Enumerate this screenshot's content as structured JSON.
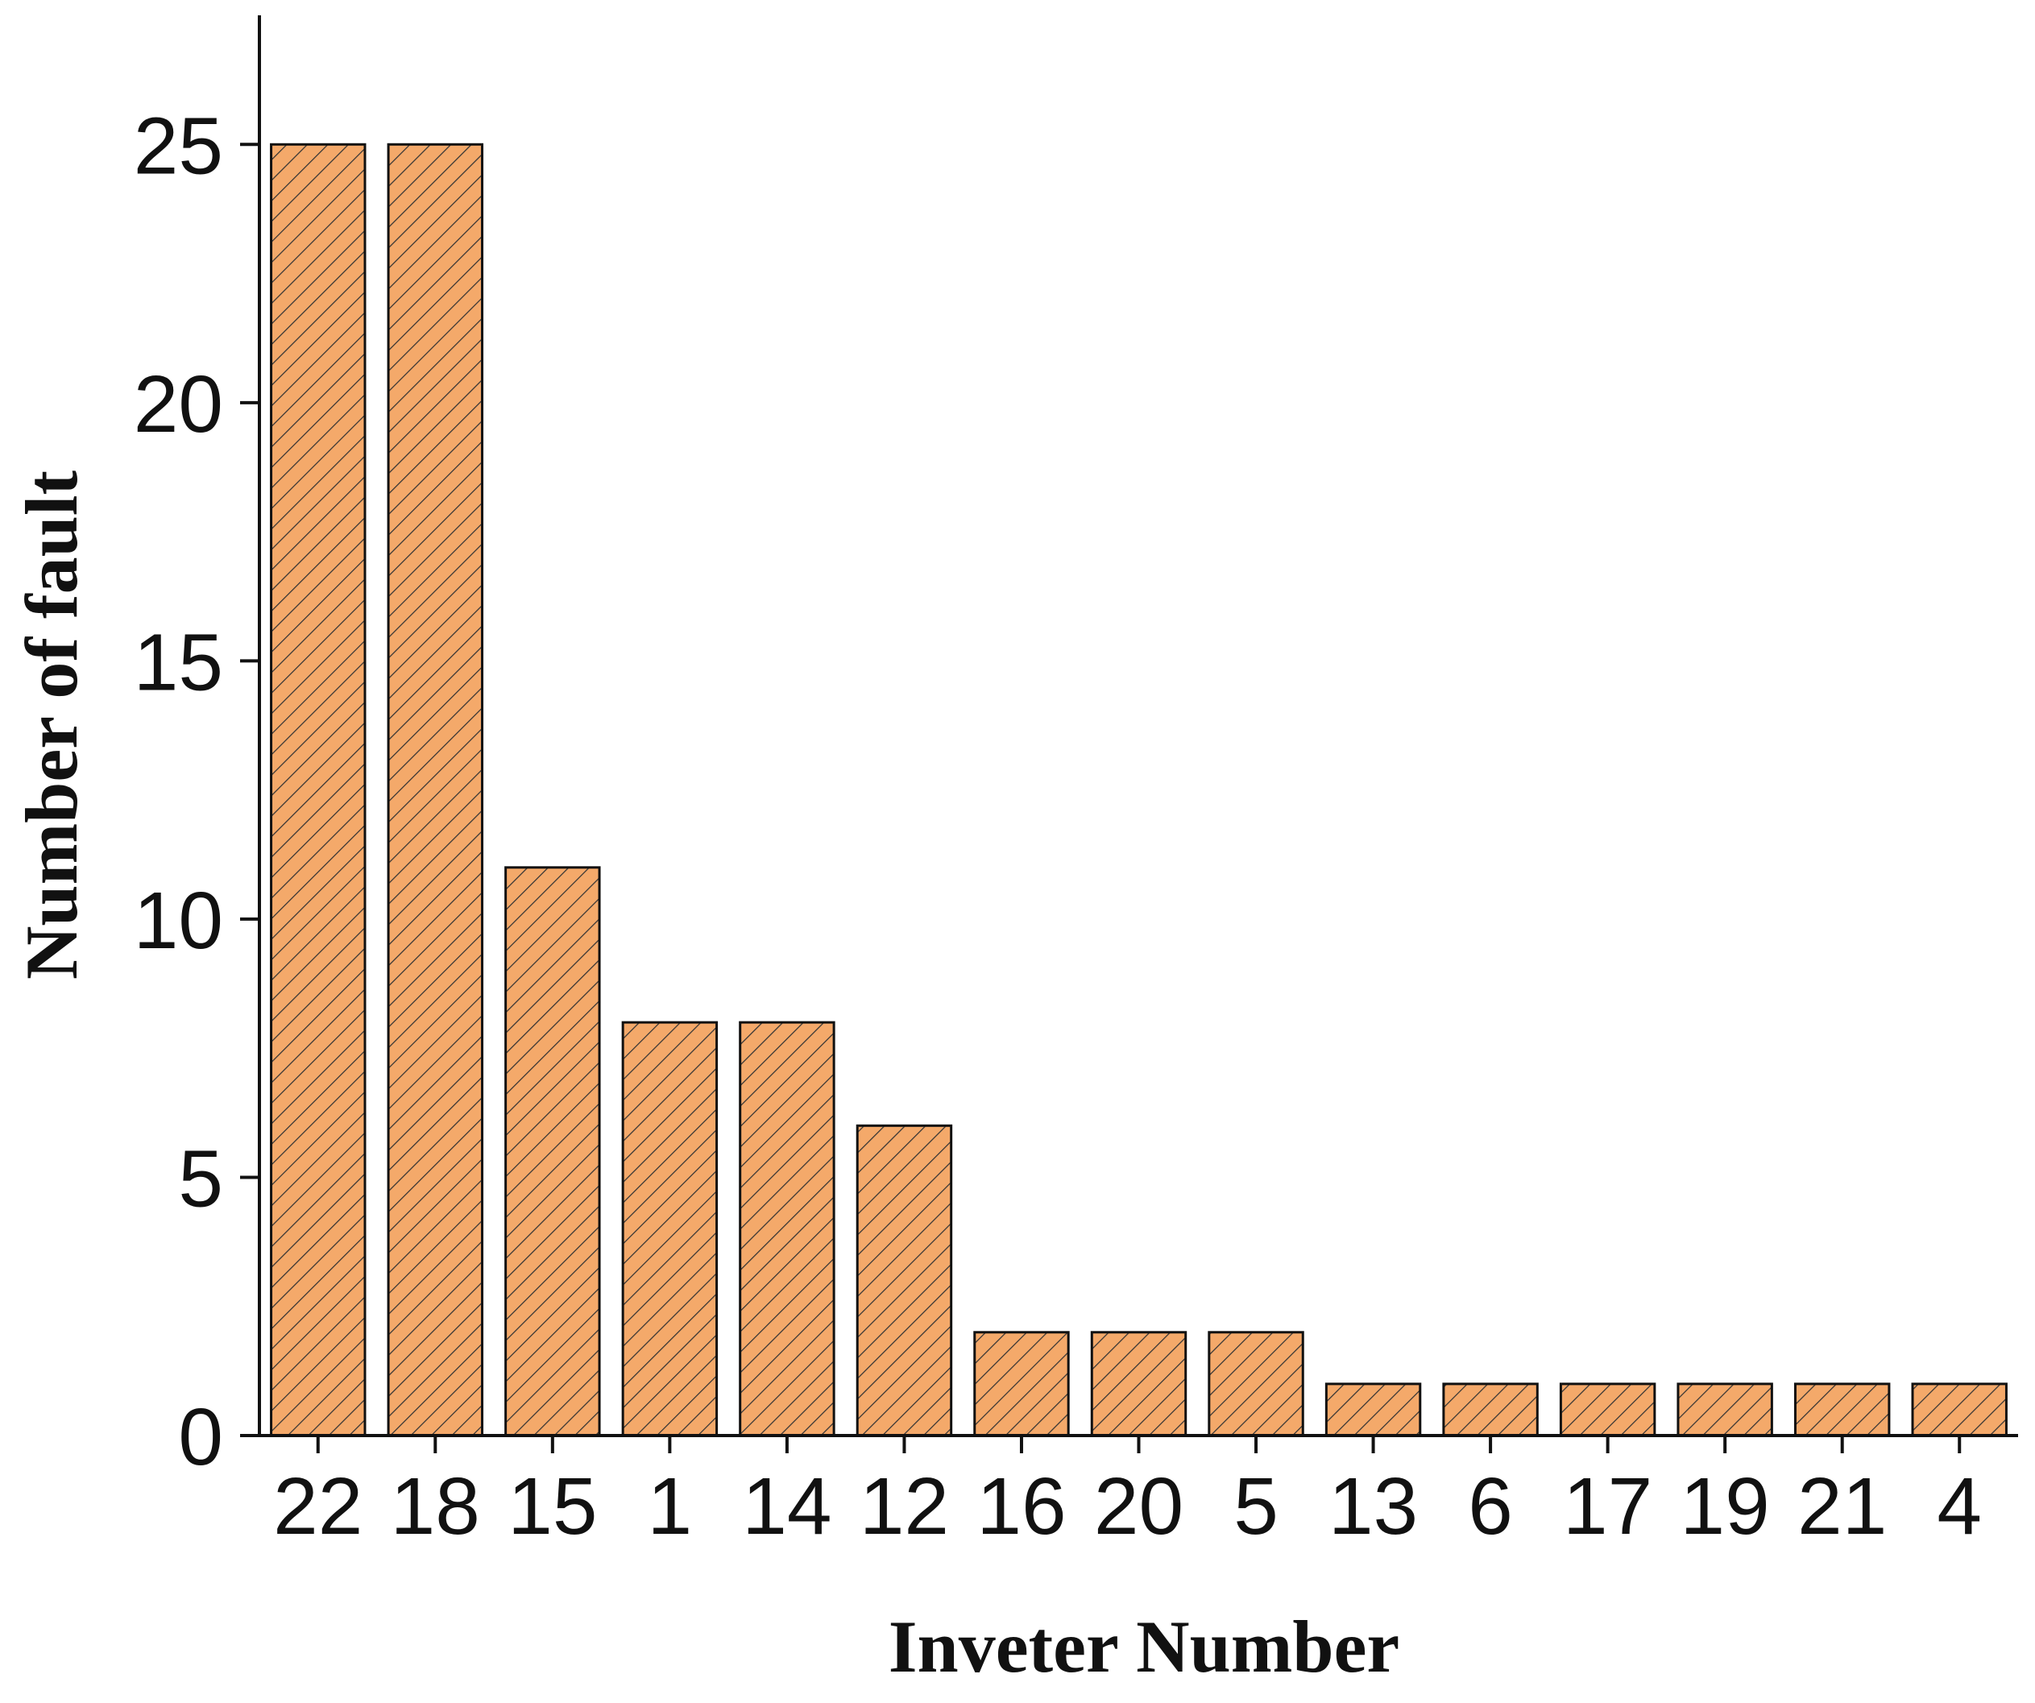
{
  "chart_data": {
    "type": "bar",
    "x_label": "Inveter Number",
    "y_label": "Number of fault",
    "categories": [
      "22",
      "18",
      "15",
      "1",
      "14",
      "12",
      "16",
      "20",
      "5",
      "13",
      "6",
      "17",
      "19",
      "21",
      "4"
    ],
    "values": [
      25,
      25,
      11,
      8,
      8,
      6,
      2,
      2,
      2,
      1,
      1,
      1,
      1,
      1,
      1
    ],
    "color": "#f4a96a",
    "ylim": [
      0,
      27.5
    ],
    "yticks": [
      0,
      5,
      10,
      15,
      20,
      25
    ],
    "grid": false
  }
}
